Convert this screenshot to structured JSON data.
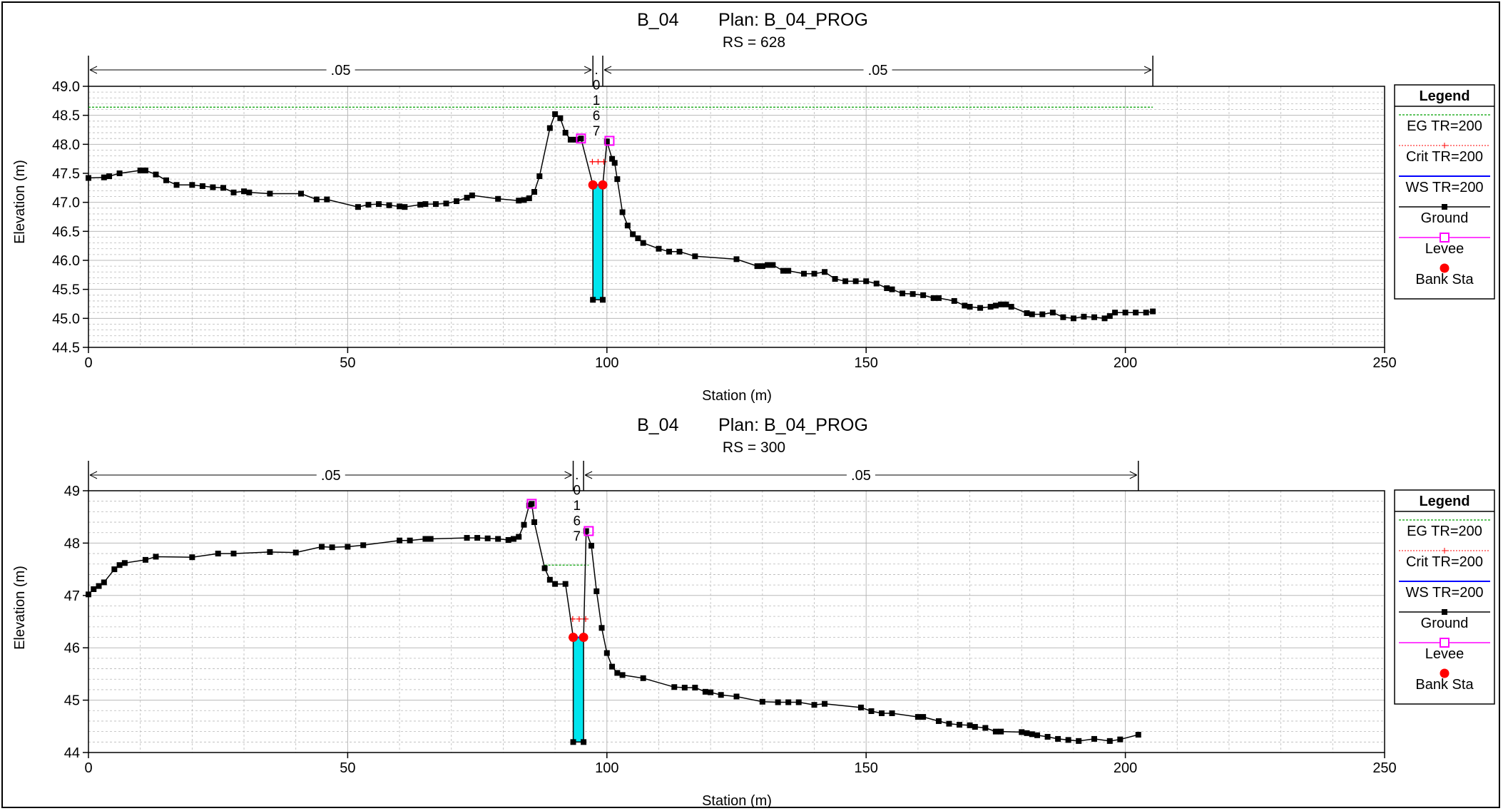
{
  "colors": {
    "eg": "#00a000",
    "crit": "#ff0000",
    "ws": "#0000ff",
    "ground": "#000000",
    "levee": "#ff00ff",
    "bank": "#ff0000",
    "water_fill": "#00e5ee",
    "grid": "#b8b8b8"
  },
  "legend": {
    "title": "Legend",
    "items": [
      {
        "label": "EG TR=200",
        "symbol": "eg"
      },
      {
        "label": "Crit TR=200",
        "symbol": "crit"
      },
      {
        "label": "WS TR=200",
        "symbol": "ws"
      },
      {
        "label": "Ground",
        "symbol": "ground"
      },
      {
        "label": "Levee",
        "symbol": "levee"
      },
      {
        "label": "Bank Sta",
        "symbol": "bank"
      }
    ]
  },
  "chart_data": [
    {
      "type": "line",
      "title": "B_04        Plan: B_04_PROG",
      "subtitle": "RS = 628",
      "xlabel": "Station (m)",
      "ylabel": "Elevation (m)",
      "xlim": [
        0,
        250
      ],
      "ylim": [
        44.5,
        49.0
      ],
      "xticks": [
        0,
        50,
        100,
        150,
        200,
        250
      ],
      "yticks": [
        44.5,
        45.0,
        45.5,
        46.0,
        46.5,
        47.0,
        47.5,
        48.0,
        48.5,
        49.0
      ],
      "ytick_labels": [
        "44.5",
        "45.0",
        "45.5",
        "46.0",
        "46.5",
        "47.0",
        "47.5",
        "48.0",
        "48.5",
        "49.0"
      ],
      "grid": true,
      "mannings": [
        {
          "x0": 0,
          "x1": 97.3,
          "label": ".05"
        },
        {
          "x0": 97.3,
          "x1": 99.2,
          "label": ".\n0\n1\n6\n7"
        },
        {
          "x0": 99.2,
          "x1": 205.3,
          "label": ".05"
        }
      ],
      "ground": [
        [
          0,
          47.42
        ],
        [
          3,
          47.43
        ],
        [
          4,
          47.45
        ],
        [
          6,
          47.5
        ],
        [
          10,
          47.55
        ],
        [
          11,
          47.55
        ],
        [
          13,
          47.48
        ],
        [
          15,
          47.38
        ],
        [
          17,
          47.3
        ],
        [
          20,
          47.3
        ],
        [
          22,
          47.28
        ],
        [
          24,
          47.26
        ],
        [
          26,
          47.25
        ],
        [
          28,
          47.17
        ],
        [
          30,
          47.19
        ],
        [
          31,
          47.17
        ],
        [
          35,
          47.15
        ],
        [
          41,
          47.15
        ],
        [
          44,
          47.05
        ],
        [
          46,
          47.05
        ],
        [
          52,
          46.92
        ],
        [
          54,
          46.96
        ],
        [
          56,
          46.97
        ],
        [
          58,
          46.95
        ],
        [
          60,
          46.93
        ],
        [
          61,
          46.92
        ],
        [
          64,
          46.96
        ],
        [
          65,
          46.97
        ],
        [
          67,
          46.97
        ],
        [
          69,
          46.98
        ],
        [
          71,
          47.02
        ],
        [
          73,
          47.08
        ],
        [
          74,
          47.12
        ],
        [
          79,
          47.06
        ],
        [
          83,
          47.03
        ],
        [
          84,
          47.04
        ],
        [
          85,
          47.07
        ],
        [
          86,
          47.18
        ],
        [
          87,
          47.45
        ],
        [
          89,
          48.28
        ],
        [
          90,
          48.52
        ],
        [
          91,
          48.45
        ],
        [
          92,
          48.2
        ],
        [
          93,
          48.08
        ],
        [
          94,
          48.08
        ],
        [
          95,
          48.1
        ],
        [
          97.3,
          47.3
        ],
        [
          97.3,
          45.32
        ],
        [
          99.2,
          45.32
        ],
        [
          99.2,
          47.3
        ],
        [
          100,
          48.05
        ],
        [
          101,
          47.75
        ],
        [
          101.5,
          47.68
        ],
        [
          102,
          47.4
        ],
        [
          103,
          46.83
        ],
        [
          104,
          46.6
        ],
        [
          105,
          46.45
        ],
        [
          106,
          46.38
        ],
        [
          107,
          46.3
        ],
        [
          110,
          46.2
        ],
        [
          112,
          46.15
        ],
        [
          114,
          46.15
        ],
        [
          117,
          46.07
        ],
        [
          125,
          46.02
        ],
        [
          129,
          45.9
        ],
        [
          130,
          45.9
        ],
        [
          131,
          45.92
        ],
        [
          132,
          45.92
        ],
        [
          134,
          45.82
        ],
        [
          135,
          45.82
        ],
        [
          138,
          45.77
        ],
        [
          140,
          45.77
        ],
        [
          142,
          45.8
        ],
        [
          144,
          45.68
        ],
        [
          146,
          45.64
        ],
        [
          148,
          45.64
        ],
        [
          150,
          45.64
        ],
        [
          152,
          45.6
        ],
        [
          154,
          45.52
        ],
        [
          155,
          45.5
        ],
        [
          157,
          45.43
        ],
        [
          159,
          45.42
        ],
        [
          161,
          45.4
        ],
        [
          163,
          45.35
        ],
        [
          164,
          45.35
        ],
        [
          167,
          45.3
        ],
        [
          169,
          45.22
        ],
        [
          170,
          45.2
        ],
        [
          172,
          45.18
        ],
        [
          174,
          45.2
        ],
        [
          175,
          45.22
        ],
        [
          176,
          45.24
        ],
        [
          177,
          45.24
        ],
        [
          178,
          45.2
        ],
        [
          181,
          45.09
        ],
        [
          182,
          45.07
        ],
        [
          184,
          45.07
        ],
        [
          186,
          45.1
        ],
        [
          188,
          45.02
        ],
        [
          190,
          45.0
        ],
        [
          192,
          45.03
        ],
        [
          194,
          45.02
        ],
        [
          196,
          45.0
        ],
        [
          197,
          45.04
        ],
        [
          198,
          45.1
        ],
        [
          200,
          45.1
        ],
        [
          202,
          45.1
        ],
        [
          204,
          45.1
        ],
        [
          205.3,
          45.12
        ]
      ],
      "levee": [
        [
          95.0,
          48.1
        ],
        [
          100.5,
          48.06
        ]
      ],
      "bank_sta": [
        [
          97.3,
          47.3
        ],
        [
          99.2,
          47.3
        ]
      ],
      "eg": {
        "x0": 0,
        "x1": 205.3,
        "y": 48.64
      },
      "crit": {
        "x0": 96.8,
        "x1": 99.8,
        "y": 47.7
      },
      "ws": {
        "x0": 97.3,
        "x1": 99.2,
        "y": 47.3
      }
    },
    {
      "type": "line",
      "title": "B_04        Plan: B_04_PROG",
      "subtitle": "RS = 300",
      "xlabel": "Station (m)",
      "ylabel": "Elevation (m)",
      "xlim": [
        0,
        250
      ],
      "ylim": [
        44,
        49
      ],
      "xticks": [
        0,
        50,
        100,
        150,
        200,
        250
      ],
      "yticks": [
        44,
        45,
        46,
        47,
        48,
        49
      ],
      "ytick_labels": [
        "44",
        "45",
        "46",
        "47",
        "48",
        "49"
      ],
      "grid": true,
      "mannings": [
        {
          "x0": 0,
          "x1": 93.5,
          "label": ".05"
        },
        {
          "x0": 93.5,
          "x1": 95.5,
          "label": ".\n0\n1\n6\n7"
        },
        {
          "x0": 95.5,
          "x1": 202.5,
          "label": ".05"
        }
      ],
      "ground": [
        [
          0,
          47.02
        ],
        [
          1,
          47.12
        ],
        [
          2,
          47.18
        ],
        [
          3,
          47.25
        ],
        [
          5,
          47.5
        ],
        [
          6,
          47.58
        ],
        [
          7,
          47.62
        ],
        [
          11,
          47.68
        ],
        [
          13,
          47.74
        ],
        [
          20,
          47.73
        ],
        [
          25,
          47.8
        ],
        [
          28,
          47.8
        ],
        [
          35,
          47.83
        ],
        [
          40,
          47.82
        ],
        [
          45,
          47.93
        ],
        [
          47,
          47.92
        ],
        [
          50,
          47.93
        ],
        [
          53,
          47.96
        ],
        [
          60,
          48.05
        ],
        [
          62,
          48.05
        ],
        [
          65,
          48.08
        ],
        [
          66,
          48.08
        ],
        [
          73,
          48.1
        ],
        [
          75,
          48.1
        ],
        [
          77,
          48.09
        ],
        [
          79,
          48.08
        ],
        [
          81,
          48.06
        ],
        [
          82,
          48.08
        ],
        [
          83,
          48.12
        ],
        [
          84,
          48.35
        ],
        [
          85,
          48.72
        ],
        [
          85.5,
          48.75
        ],
        [
          86,
          48.4
        ],
        [
          88,
          47.52
        ],
        [
          89,
          47.3
        ],
        [
          90,
          47.22
        ],
        [
          92,
          47.22
        ],
        [
          93.5,
          46.2
        ],
        [
          93.5,
          44.2
        ],
        [
          95.5,
          44.2
        ],
        [
          95.5,
          46.2
        ],
        [
          96,
          48.23
        ],
        [
          97,
          47.95
        ],
        [
          98,
          47.08
        ],
        [
          99,
          46.38
        ],
        [
          100,
          45.9
        ],
        [
          101,
          45.64
        ],
        [
          102,
          45.52
        ],
        [
          103,
          45.48
        ],
        [
          107,
          45.42
        ],
        [
          113,
          45.25
        ],
        [
          115,
          45.24
        ],
        [
          117,
          45.24
        ],
        [
          119,
          45.16
        ],
        [
          120,
          45.15
        ],
        [
          122,
          45.1
        ],
        [
          125,
          45.07
        ],
        [
          130,
          44.97
        ],
        [
          133,
          44.96
        ],
        [
          135,
          44.96
        ],
        [
          137,
          44.96
        ],
        [
          140,
          44.91
        ],
        [
          142,
          44.93
        ],
        [
          149,
          44.86
        ],
        [
          151,
          44.79
        ],
        [
          153,
          44.75
        ],
        [
          155,
          44.75
        ],
        [
          160,
          44.68
        ],
        [
          161,
          44.68
        ],
        [
          164,
          44.6
        ],
        [
          166,
          44.55
        ],
        [
          168,
          44.53
        ],
        [
          170,
          44.52
        ],
        [
          171,
          44.49
        ],
        [
          173,
          44.47
        ],
        [
          175,
          44.4
        ],
        [
          176,
          44.4
        ],
        [
          180,
          44.39
        ],
        [
          181,
          44.37
        ],
        [
          182,
          44.35
        ],
        [
          183,
          44.33
        ],
        [
          185,
          44.3
        ],
        [
          187,
          44.26
        ],
        [
          189,
          44.24
        ],
        [
          191,
          44.22
        ],
        [
          194,
          44.26
        ],
        [
          197,
          44.22
        ],
        [
          199,
          44.25
        ],
        [
          202.5,
          44.34
        ]
      ],
      "levee": [
        [
          85.5,
          48.75
        ],
        [
          96.5,
          48.23
        ]
      ],
      "bank_sta": [
        [
          93.5,
          46.2
        ],
        [
          95.5,
          46.2
        ]
      ],
      "eg": {
        "x0": 88,
        "x1": 96.5,
        "y": 47.58
      },
      "crit": {
        "x0": 93.0,
        "x1": 96.3,
        "y": 46.55
      },
      "ws": {
        "x0": 93.5,
        "x1": 95.5,
        "y": 46.2
      }
    }
  ]
}
